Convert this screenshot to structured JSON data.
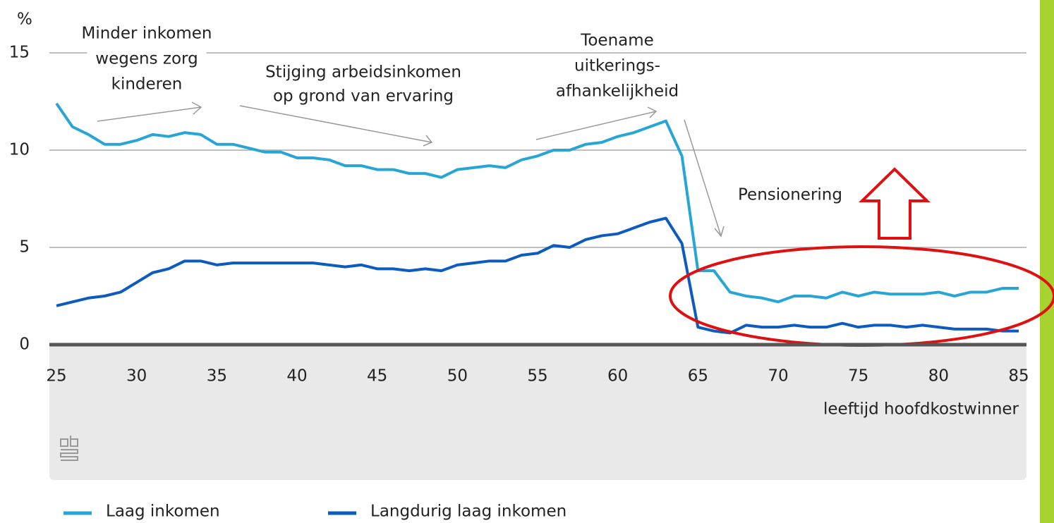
{
  "chart_data": {
    "type": "line",
    "y_unit": "%",
    "x_label": "leeftijd hoofdkostwinner",
    "x": [
      25,
      26,
      27,
      28,
      29,
      30,
      31,
      32,
      33,
      34,
      35,
      36,
      37,
      38,
      39,
      40,
      41,
      42,
      43,
      44,
      45,
      46,
      47,
      48,
      49,
      50,
      51,
      52,
      53,
      54,
      55,
      56,
      57,
      58,
      59,
      60,
      61,
      62,
      63,
      64,
      65,
      66,
      67,
      68,
      69,
      70,
      71,
      72,
      73,
      74,
      75,
      76,
      77,
      78,
      79,
      80,
      81,
      82,
      83,
      84,
      85
    ],
    "series": [
      {
        "name": "Laag inkomen",
        "color": "#27a6d6",
        "values": [
          12.4,
          11.2,
          10.8,
          10.3,
          10.3,
          10.5,
          10.8,
          10.7,
          10.9,
          10.8,
          10.3,
          10.3,
          10.1,
          9.9,
          9.9,
          9.6,
          9.6,
          9.5,
          9.2,
          9.2,
          9.0,
          9.0,
          8.8,
          8.8,
          8.6,
          9.0,
          9.1,
          9.2,
          9.1,
          9.5,
          9.7,
          10.0,
          10.0,
          10.3,
          10.4,
          10.7,
          10.9,
          11.2,
          11.5,
          9.7,
          3.8,
          3.8,
          2.7,
          2.5,
          2.4,
          2.2,
          2.5,
          2.5,
          2.4,
          2.7,
          2.5,
          2.7,
          2.6,
          2.6,
          2.6,
          2.7,
          2.5,
          2.7,
          2.7,
          2.9,
          2.9
        ]
      },
      {
        "name": "Langdurig laag inkomen",
        "color": "#0d5bbf",
        "values": [
          2.0,
          2.2,
          2.4,
          2.5,
          2.7,
          3.2,
          3.7,
          3.9,
          4.3,
          4.3,
          4.1,
          4.2,
          4.2,
          4.2,
          4.2,
          4.2,
          4.2,
          4.1,
          4.0,
          4.1,
          3.9,
          3.9,
          3.8,
          3.9,
          3.8,
          4.1,
          4.2,
          4.3,
          4.3,
          4.6,
          4.7,
          5.1,
          5.0,
          5.4,
          5.6,
          5.7,
          6.0,
          6.3,
          6.5,
          5.2,
          0.9,
          0.7,
          0.6,
          1.0,
          0.9,
          0.9,
          1.0,
          0.9,
          0.9,
          1.1,
          0.9,
          1.0,
          1.0,
          0.9,
          1.0,
          0.9,
          0.8,
          0.8,
          0.8,
          0.7,
          0.7
        ]
      }
    ],
    "xlim": [
      25,
      85
    ],
    "xticks": [
      25,
      30,
      35,
      40,
      45,
      50,
      55,
      60,
      65,
      70,
      75,
      80,
      85
    ],
    "ylim": [
      0,
      15
    ],
    "yticks": [
      0,
      5,
      10,
      15
    ],
    "grid": true,
    "annotations": [
      {
        "lines": [
          "Minder inkomen",
          "wegens zorg",
          "kinderen"
        ]
      },
      {
        "lines": [
          "Stijging arbeidsinkomen",
          "op grond van ervaring"
        ]
      },
      {
        "lines": [
          "Toename",
          "uitkerings-",
          "afhankelijkheid"
        ]
      },
      {
        "lines": [
          "Pensionering"
        ]
      }
    ]
  }
}
